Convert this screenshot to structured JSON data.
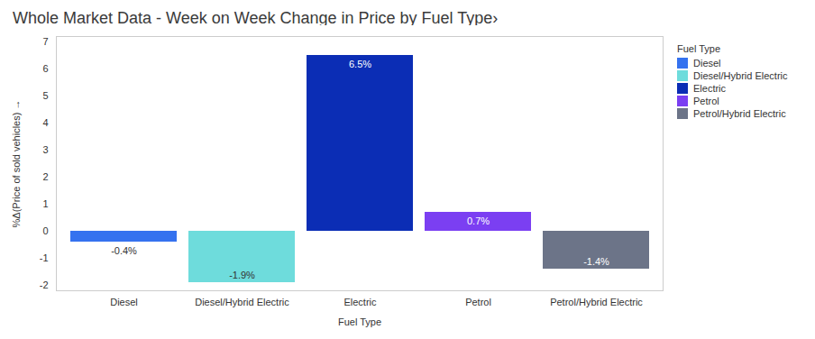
{
  "chart_data": {
    "type": "bar",
    "title": "Whole Market Data - Week on Week Change in Price by Fuel Type›",
    "x_label": "Fuel Type",
    "y_label": "%Δ(Price of sold vehicles)",
    "categories": [
      "Diesel",
      "Diesel/Hybrid Electric",
      "Electric",
      "Petrol",
      "Petrol/Hybrid Electric"
    ],
    "values": [
      -0.4,
      -1.9,
      6.5,
      0.7,
      -1.4
    ],
    "value_labels": [
      "-0.4%",
      "-1.9%",
      "6.5%",
      "0.7%",
      "-1.4%"
    ],
    "colors": [
      "#3572ef",
      "#6edcdc",
      "#0b2db5",
      "#7b3ff2",
      "#6c7488"
    ],
    "ylim": [
      -2.2,
      7.2
    ],
    "yticks": [
      -2,
      -1,
      0,
      1,
      2,
      3,
      4,
      5,
      6,
      7
    ],
    "grid": false,
    "data_labels": true,
    "legend": "top right",
    "legend_title": "Fuel Type"
  }
}
